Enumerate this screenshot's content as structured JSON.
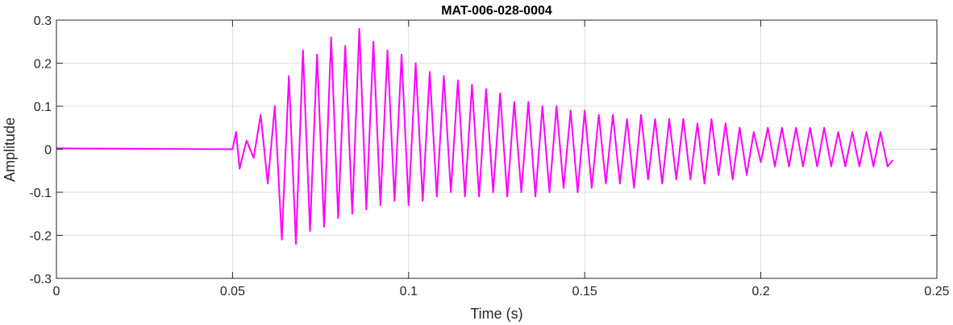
{
  "chart_data": {
    "type": "line",
    "title": "MAT-006-028-0004",
    "xlabel": "Time (s)",
    "ylabel": "Amplitude",
    "xlim": [
      0,
      0.25
    ],
    "ylim": [
      -0.3,
      0.3
    ],
    "grid": true,
    "x_ticks": [
      0,
      0.05,
      0.1,
      0.15,
      0.2,
      0.25
    ],
    "x_tick_labels": [
      "0",
      "0.05",
      "0.1",
      "0.15",
      "0.2",
      "0.25"
    ],
    "y_ticks": [
      0.3,
      0.2,
      0.1,
      0,
      -0.1,
      -0.2,
      -0.3
    ],
    "y_tick_labels": [
      "0.3",
      "0.2",
      "0.1",
      "0",
      "-0.1",
      "-0.2",
      "-0.3"
    ],
    "series": [
      {
        "color": "#ff00ff",
        "x": [
          0,
          0.05,
          0.051,
          0.052,
          0.054,
          0.056,
          0.058,
          0.06,
          0.062,
          0.064,
          0.066,
          0.068,
          0.07,
          0.072,
          0.074,
          0.076,
          0.078,
          0.08,
          0.082,
          0.084,
          0.086,
          0.088,
          0.09,
          0.092,
          0.094,
          0.096,
          0.098,
          0.1,
          0.102,
          0.104,
          0.106,
          0.108,
          0.11,
          0.112,
          0.114,
          0.116,
          0.118,
          0.12,
          0.122,
          0.124,
          0.126,
          0.128,
          0.13,
          0.132,
          0.134,
          0.136,
          0.138,
          0.14,
          0.142,
          0.144,
          0.146,
          0.148,
          0.15,
          0.152,
          0.154,
          0.156,
          0.158,
          0.16,
          0.162,
          0.164,
          0.166,
          0.168,
          0.17,
          0.172,
          0.174,
          0.176,
          0.178,
          0.18,
          0.182,
          0.184,
          0.186,
          0.188,
          0.19,
          0.192,
          0.194,
          0.196,
          0.198,
          0.2,
          0.202,
          0.204,
          0.206,
          0.208,
          0.21,
          0.212,
          0.214,
          0.216,
          0.218,
          0.22,
          0.222,
          0.224,
          0.226,
          0.228,
          0.23,
          0.232,
          0.234,
          0.236,
          0.2375
        ],
        "y": [
          0.002,
          0.0,
          0.04,
          -0.045,
          0.02,
          -0.02,
          0.08,
          -0.08,
          0.1,
          -0.21,
          0.17,
          -0.22,
          0.23,
          -0.19,
          0.22,
          -0.18,
          0.26,
          -0.16,
          0.24,
          -0.15,
          0.28,
          -0.14,
          0.25,
          -0.13,
          0.23,
          -0.12,
          0.22,
          -0.13,
          0.2,
          -0.12,
          0.18,
          -0.11,
          0.17,
          -0.1,
          0.16,
          -0.11,
          0.15,
          -0.11,
          0.14,
          -0.1,
          0.13,
          -0.11,
          0.11,
          -0.1,
          0.11,
          -0.11,
          0.1,
          -0.1,
          0.1,
          -0.09,
          0.09,
          -0.1,
          0.09,
          -0.09,
          0.08,
          -0.08,
          0.08,
          -0.08,
          0.07,
          -0.09,
          0.08,
          -0.07,
          0.07,
          -0.08,
          0.07,
          -0.07,
          0.07,
          -0.07,
          0.06,
          -0.08,
          0.07,
          -0.06,
          0.06,
          -0.07,
          0.05,
          -0.06,
          0.04,
          -0.03,
          0.05,
          -0.04,
          0.05,
          -0.04,
          0.05,
          -0.04,
          0.05,
          -0.04,
          0.05,
          -0.04,
          0.04,
          -0.04,
          0.04,
          -0.04,
          0.04,
          -0.04,
          0.04,
          -0.04,
          -0.025
        ]
      }
    ]
  }
}
